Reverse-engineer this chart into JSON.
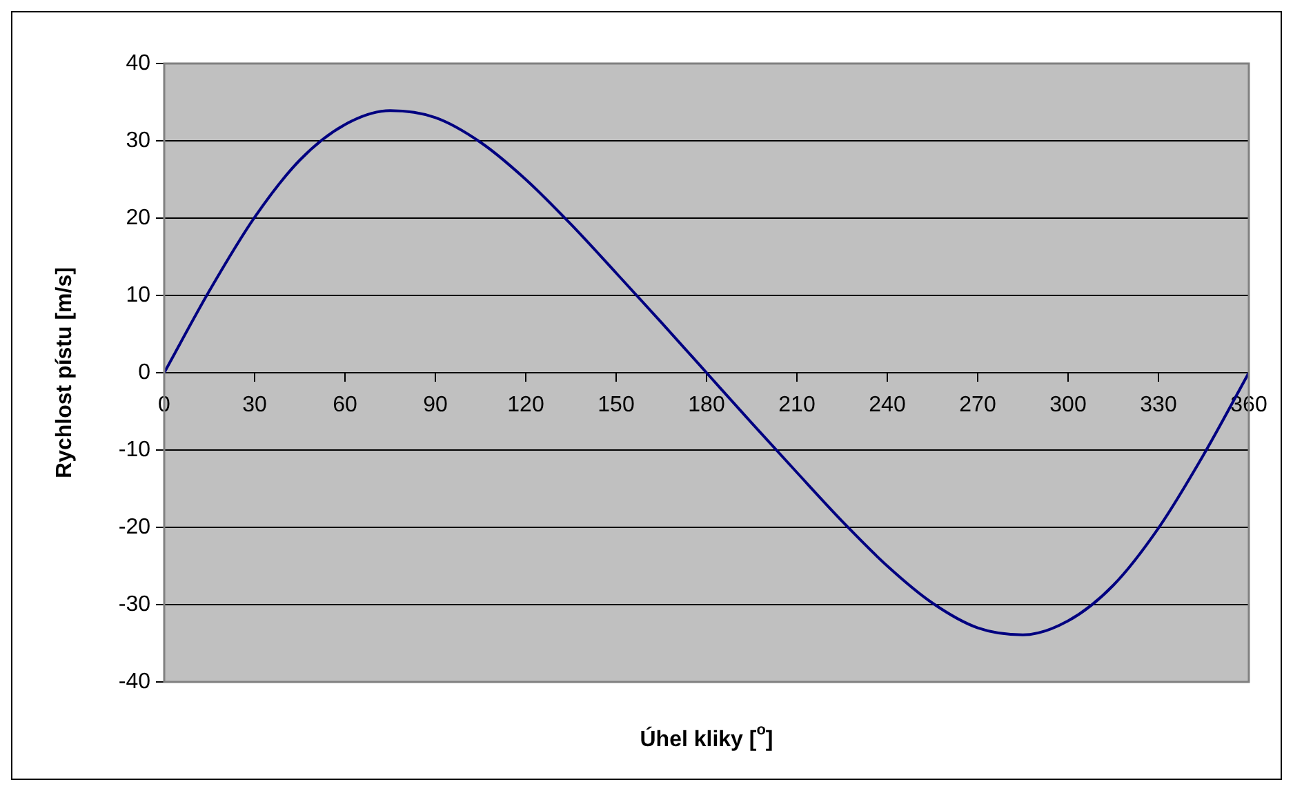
{
  "chart_data": {
    "type": "line",
    "xlabel": "Úhel kliky [$^{o}$]",
    "ylabel": "Rychlost pístu [m/s]",
    "x": [
      0,
      15,
      30,
      45,
      60,
      75,
      90,
      105,
      120,
      135,
      150,
      165,
      180,
      195,
      210,
      225,
      240,
      255,
      270,
      285,
      300,
      315,
      330,
      345,
      360
    ],
    "series": [
      {
        "color": "#000080",
        "values": [
          0,
          10.6,
          20.1,
          27.5,
          32.1,
          33.9,
          33,
          29.8,
          25,
          19.2,
          12.9,
          6.5,
          0,
          -6.5,
          -12.9,
          -19.2,
          -25,
          -29.8,
          -33,
          -33.9,
          -32.1,
          -27.5,
          -20.1,
          -10.6,
          0
        ]
      }
    ],
    "xlim": [
      0,
      360
    ],
    "xticks": [
      0,
      30,
      60,
      90,
      120,
      150,
      180,
      210,
      240,
      270,
      300,
      330,
      360
    ],
    "ylim": [
      -40,
      40
    ],
    "yticks": [
      -40,
      -30,
      -20,
      -10,
      0,
      10,
      20,
      30,
      40
    ],
    "grid": "y",
    "legend": false,
    "marker": "none",
    "line_style": "solid"
  }
}
